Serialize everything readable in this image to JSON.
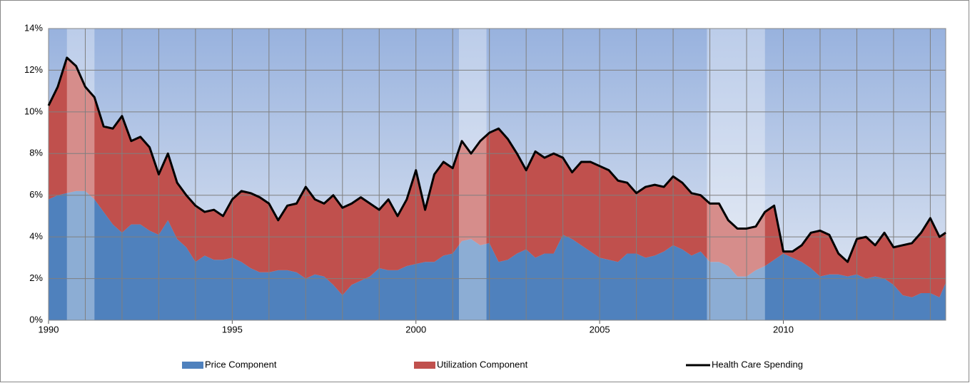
{
  "chart_data": {
    "type": "stacked_area_line",
    "x": [
      1990,
      1990.25,
      1990.5,
      1990.75,
      1991,
      1991.25,
      1991.5,
      1991.75,
      1992,
      1992.25,
      1992.5,
      1992.75,
      1993,
      1993.25,
      1993.5,
      1993.75,
      1994,
      1994.25,
      1994.5,
      1994.75,
      1995,
      1995.25,
      1995.5,
      1995.75,
      1996,
      1996.25,
      1996.5,
      1996.75,
      1997,
      1997.25,
      1997.5,
      1997.75,
      1998,
      1998.25,
      1998.5,
      1998.75,
      1999,
      1999.25,
      1999.5,
      1999.75,
      2000,
      2000.25,
      2000.5,
      2000.75,
      2001,
      2001.25,
      2001.5,
      2001.75,
      2002,
      2002.25,
      2002.5,
      2002.75,
      2003,
      2003.25,
      2003.5,
      2003.75,
      2004,
      2004.25,
      2004.5,
      2004.75,
      2005,
      2005.25,
      2005.5,
      2005.75,
      2006,
      2006.25,
      2006.5,
      2006.75,
      2007,
      2007.25,
      2007.5,
      2007.75,
      2008,
      2008.25,
      2008.5,
      2008.75,
      2009,
      2009.25,
      2009.5,
      2009.75,
      2010,
      2010.25,
      2010.5,
      2010.75,
      2011,
      2011.25,
      2011.5,
      2011.75,
      2012,
      2012.25,
      2012.5,
      2012.75,
      2013,
      2013.25,
      2013.5,
      2013.75,
      2014,
      2014.25,
      2014.42
    ],
    "series": [
      {
        "name": "Price Component",
        "color": "#4f81bd",
        "kind": "area",
        "values": [
          5.8,
          6.0,
          6.1,
          6.2,
          6.2,
          5.8,
          5.2,
          4.6,
          4.2,
          4.6,
          4.6,
          4.3,
          4.1,
          4.8,
          3.9,
          3.5,
          2.8,
          3.1,
          2.9,
          2.9,
          3.0,
          2.8,
          2.5,
          2.3,
          2.3,
          2.4,
          2.4,
          2.3,
          2.0,
          2.2,
          2.1,
          1.7,
          1.2,
          1.7,
          1.9,
          2.1,
          2.5,
          2.4,
          2.4,
          2.6,
          2.7,
          2.8,
          2.8,
          3.1,
          3.2,
          3.8,
          3.9,
          3.6,
          3.7,
          2.8,
          2.9,
          3.2,
          3.4,
          3.0,
          3.2,
          3.2,
          4.1,
          3.9,
          3.6,
          3.3,
          3.0,
          2.9,
          2.8,
          3.2,
          3.2,
          3.0,
          3.1,
          3.3,
          3.6,
          3.4,
          3.1,
          3.3,
          2.8,
          2.8,
          2.6,
          2.1,
          2.1,
          2.4,
          2.6,
          2.9,
          3.2,
          3.0,
          2.8,
          2.5,
          2.1,
          2.2,
          2.2,
          2.1,
          2.2,
          2.0,
          2.1,
          2.0,
          1.7,
          1.2,
          1.1,
          1.3,
          1.3,
          1.1,
          1.8
        ]
      },
      {
        "name": "Utilization Component",
        "color": "#c0504d",
        "kind": "area",
        "values": [
          4.5,
          5.2,
          6.5,
          6.0,
          5.0,
          4.9,
          4.1,
          4.6,
          5.6,
          4.0,
          4.2,
          4.0,
          2.9,
          3.2,
          2.7,
          2.5,
          2.7,
          2.1,
          2.4,
          2.1,
          2.8,
          3.4,
          3.6,
          3.6,
          3.3,
          2.4,
          3.1,
          3.3,
          4.4,
          3.6,
          3.5,
          4.3,
          4.2,
          3.9,
          4.0,
          3.5,
          2.8,
          3.4,
          2.6,
          3.2,
          4.5,
          2.5,
          4.2,
          4.5,
          4.1,
          4.8,
          4.1,
          5.0,
          5.3,
          6.4,
          5.8,
          4.8,
          3.8,
          5.1,
          4.6,
          4.8,
          3.7,
          3.2,
          4.0,
          4.3,
          4.4,
          4.3,
          3.9,
          3.4,
          2.9,
          3.4,
          3.4,
          3.1,
          3.3,
          3.2,
          3.0,
          2.7,
          2.8,
          2.8,
          2.2,
          2.3,
          2.3,
          2.1,
          2.6,
          2.6,
          0.1,
          0.3,
          0.8,
          1.7,
          2.2,
          1.9,
          1.0,
          0.7,
          1.7,
          2.0,
          1.5,
          2.2,
          1.8,
          2.4,
          2.6,
          2.9,
          3.6,
          2.9,
          2.4
        ]
      },
      {
        "name": "Health Care Spending",
        "color": "#000000",
        "kind": "line",
        "values": [
          10.3,
          11.2,
          12.6,
          12.2,
          11.2,
          10.7,
          9.3,
          9.2,
          9.8,
          8.6,
          8.8,
          8.3,
          7.0,
          8.0,
          6.6,
          6.0,
          5.5,
          5.2,
          5.3,
          5.0,
          5.8,
          6.2,
          6.1,
          5.9,
          5.6,
          4.8,
          5.5,
          5.6,
          6.4,
          5.8,
          5.6,
          6.0,
          5.4,
          5.6,
          5.9,
          5.6,
          5.3,
          5.8,
          5.0,
          5.8,
          7.2,
          5.3,
          7.0,
          7.6,
          7.3,
          8.6,
          8.0,
          8.6,
          9.0,
          9.2,
          8.7,
          8.0,
          7.2,
          8.1,
          7.8,
          8.0,
          7.8,
          7.1,
          7.6,
          7.6,
          7.4,
          7.2,
          6.7,
          6.6,
          6.1,
          6.4,
          6.5,
          6.4,
          6.9,
          6.6,
          6.1,
          6.0,
          5.6,
          5.6,
          4.8,
          4.4,
          4.4,
          4.5,
          5.2,
          5.5,
          3.3,
          3.3,
          3.6,
          4.2,
          4.3,
          4.1,
          3.2,
          2.8,
          3.9,
          4.0,
          3.6,
          4.2,
          3.5,
          3.6,
          3.7,
          4.2,
          4.9,
          4.0,
          4.2
        ]
      }
    ],
    "xlim": [
      1990,
      2014.42
    ],
    "xticks": [
      1990,
      1995,
      2000,
      2005,
      2010
    ],
    "xgrid": [
      1991,
      1992,
      1993,
      1994,
      1996,
      1997,
      1998,
      1999,
      2001,
      2002,
      2003,
      2004,
      2006,
      2007,
      2008,
      2009,
      2011,
      2012,
      2013,
      2014
    ],
    "ylim": [
      0,
      14
    ],
    "yticks": [
      {
        "value": 0,
        "label": "0%"
      },
      {
        "value": 2,
        "label": "2%"
      },
      {
        "value": 4,
        "label": "4%"
      },
      {
        "value": 6,
        "label": "6%"
      },
      {
        "value": 8,
        "label": "8%"
      },
      {
        "value": 10,
        "label": "10%"
      },
      {
        "value": 12,
        "label": "12%"
      },
      {
        "value": 14,
        "label": "14%"
      }
    ],
    "shaded": [
      [
        1990.5,
        1991.25
      ],
      [
        2001.17,
        2001.92
      ],
      [
        2007.92,
        2009.5
      ]
    ],
    "grid": true,
    "legend": "bottom"
  }
}
